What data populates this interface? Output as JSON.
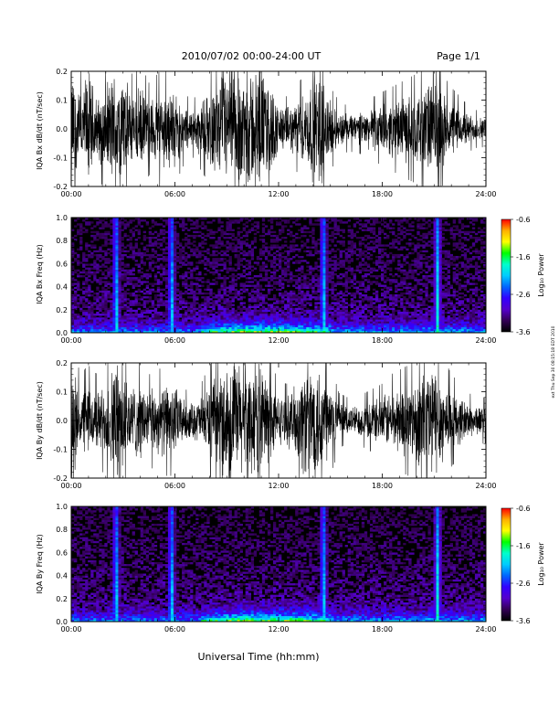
{
  "header": {
    "date_range": "2010/07/02  00:00-24:00 UT",
    "page": "Page 1/1"
  },
  "side_stamp": "ext Thu Sep 30 08:15:18 EDT 2010",
  "xlabel": "Universal Time (hh:mm)",
  "colorbar": {
    "label": "Log₁₀ Power",
    "ticks": [
      "-0.6",
      "-1.6",
      "-2.6",
      "-3.6"
    ],
    "colors": [
      "#ff0000",
      "#ffb000",
      "#ffff00",
      "#00ff00",
      "#00ffcc",
      "#00ccff",
      "#0066ff",
      "#3300ff",
      "#5500cc",
      "#330055",
      "#000000"
    ]
  },
  "chart_data": [
    {
      "type": "line",
      "ylabel": "IQA Bx dB/dt (nT/sec)",
      "xlim": [
        0,
        24
      ],
      "ylim": [
        -0.2,
        0.2
      ],
      "x_ticks": [
        "00:00",
        "06:00",
        "12:00",
        "18:00",
        "24:00"
      ],
      "y_ticks": [
        "0.2",
        "0.1",
        "0.0",
        "-0.1",
        "-0.2"
      ],
      "envelope": {
        "x_hours": [
          0,
          0.5,
          1,
          1.5,
          2,
          2.5,
          3,
          3.5,
          4,
          4.5,
          5,
          5.5,
          6,
          6.5,
          7,
          7.5,
          8,
          8.5,
          9,
          9.5,
          10,
          10.5,
          11,
          11.5,
          12,
          12.5,
          13,
          13.5,
          14,
          14.5,
          15,
          15.5,
          16,
          16.5,
          17,
          17.5,
          18,
          18.5,
          19,
          19.5,
          20,
          20.5,
          21,
          21.5,
          22,
          22.5,
          23,
          23.5,
          24
        ],
        "amplitude": [
          0.2,
          0.12,
          0.2,
          0.1,
          0.14,
          0.2,
          0.18,
          0.12,
          0.14,
          0.1,
          0.12,
          0.14,
          0.12,
          0.08,
          0.06,
          0.09,
          0.12,
          0.16,
          0.2,
          0.2,
          0.2,
          0.2,
          0.2,
          0.16,
          0.08,
          0.07,
          0.09,
          0.12,
          0.18,
          0.2,
          0.09,
          0.06,
          0.05,
          0.05,
          0.06,
          0.07,
          0.08,
          0.09,
          0.1,
          0.11,
          0.12,
          0.14,
          0.2,
          0.12,
          0.09,
          0.07,
          0.05,
          0.04,
          0.04
        ]
      }
    },
    {
      "type": "heatmap",
      "ylabel": "IQA Bx Freq (Hz)",
      "xlim": [
        0,
        24
      ],
      "ylim": [
        0.0,
        1.0
      ],
      "x_ticks": [
        "00:00",
        "06:00",
        "12:00",
        "18:00",
        "24:00"
      ],
      "y_ticks": [
        "1.0",
        "0.8",
        "0.6",
        "0.4",
        "0.2",
        "0.0"
      ],
      "zlim": [
        -3.6,
        -0.6
      ],
      "broadband_bursts_hours": [
        2.6,
        5.8,
        14.6,
        21.2
      ]
    },
    {
      "type": "line",
      "ylabel": "IQA By dB/dt (nT/sec)",
      "xlim": [
        0,
        24
      ],
      "ylim": [
        -0.2,
        0.2
      ],
      "x_ticks": [
        "00:00",
        "06:00",
        "12:00",
        "18:00",
        "24:00"
      ],
      "y_ticks": [
        "0.2",
        "0.1",
        "0.0",
        "-0.1",
        "-0.2"
      ],
      "envelope": {
        "x_hours": [
          0,
          0.5,
          1,
          1.5,
          2,
          2.5,
          3,
          3.5,
          4,
          4.5,
          5,
          5.5,
          6,
          6.5,
          7,
          7.5,
          8,
          8.5,
          9,
          9.5,
          10,
          10.5,
          11,
          11.5,
          12,
          12.5,
          13,
          13.5,
          14,
          14.5,
          15,
          15.5,
          16,
          16.5,
          17,
          17.5,
          18,
          18.5,
          19,
          19.5,
          20,
          20.5,
          21,
          21.5,
          22,
          22.5,
          23,
          23.5,
          24
        ],
        "amplitude": [
          0.2,
          0.1,
          0.12,
          0.1,
          0.12,
          0.2,
          0.18,
          0.12,
          0.13,
          0.1,
          0.11,
          0.12,
          0.12,
          0.07,
          0.06,
          0.08,
          0.12,
          0.14,
          0.2,
          0.2,
          0.2,
          0.18,
          0.2,
          0.14,
          0.08,
          0.08,
          0.12,
          0.2,
          0.2,
          0.2,
          0.12,
          0.06,
          0.05,
          0.05,
          0.06,
          0.07,
          0.08,
          0.1,
          0.11,
          0.12,
          0.14,
          0.2,
          0.2,
          0.14,
          0.1,
          0.08,
          0.06,
          0.05,
          0.05
        ]
      }
    },
    {
      "type": "heatmap",
      "ylabel": "IQA By Freq (Hz)",
      "xlim": [
        0,
        24
      ],
      "ylim": [
        0.0,
        1.0
      ],
      "x_ticks": [
        "00:00",
        "06:00",
        "12:00",
        "18:00",
        "24:00"
      ],
      "y_ticks": [
        "1.0",
        "0.8",
        "0.6",
        "0.4",
        "0.2",
        "0.0"
      ],
      "zlim": [
        -3.6,
        -0.6
      ],
      "broadband_bursts_hours": [
        2.6,
        5.8,
        14.6,
        21.2
      ]
    }
  ]
}
